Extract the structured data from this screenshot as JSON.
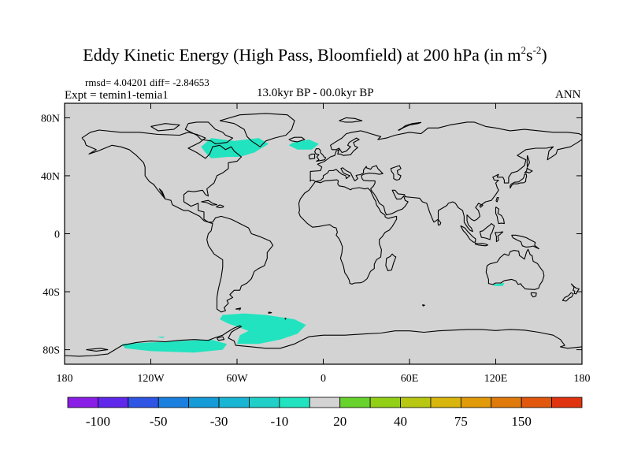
{
  "title": {
    "main": "Eddy Kinetic Energy (High Pass, Bloomfield) at 200 hPa (in m",
    "sup1": "2",
    "mid": "s",
    "sup2": "-2",
    "end": ")"
  },
  "stats": "rmsd= 4.04201 diff= -2.84653",
  "experiment": "Expt = temin1-temia1",
  "period": "13.0kyr BP - 00.0kyr BP",
  "season": "ANN",
  "map": {
    "lon_range": [
      -180,
      180
    ],
    "lat_range": [
      -90,
      90
    ],
    "background_color": "#d3d3d3",
    "x_ticks": [
      {
        "value": -180,
        "label": "180"
      },
      {
        "value": -120,
        "label": "120W"
      },
      {
        "value": -60,
        "label": "60W"
      },
      {
        "value": 0,
        "label": "0"
      },
      {
        "value": 60,
        "label": "60E"
      },
      {
        "value": 120,
        "label": "120E"
      },
      {
        "value": 180,
        "label": "180"
      }
    ],
    "y_ticks": [
      {
        "value": 80,
        "label": "80N"
      },
      {
        "value": 40,
        "label": "40N"
      },
      {
        "value": 0,
        "label": "0"
      },
      {
        "value": -40,
        "label": "40S"
      },
      {
        "value": -80,
        "label": "80S"
      }
    ],
    "anomaly_regions": [
      {
        "color": "#21e3bf",
        "level": -10,
        "polygon": [
          [
            -85,
            60
          ],
          [
            -78,
            66
          ],
          [
            -62,
            64
          ],
          [
            -45,
            66
          ],
          [
            -38,
            62
          ],
          [
            -48,
            56
          ],
          [
            -58,
            53
          ],
          [
            -66,
            53
          ],
          [
            -78,
            52
          ],
          [
            -82,
            56
          ]
        ]
      },
      {
        "color": "#21e3bf",
        "level": -10,
        "polygon": [
          [
            -21,
            63
          ],
          [
            -10,
            65
          ],
          [
            -3,
            62
          ],
          [
            -8,
            58
          ],
          [
            -18,
            58
          ],
          [
            -24,
            61
          ]
        ]
      },
      {
        "color": "#21e3bf",
        "level": -10,
        "polygon": [
          [
            -70,
            -56
          ],
          [
            -55,
            -55
          ],
          [
            -40,
            -56
          ],
          [
            -20,
            -59
          ],
          [
            -12,
            -63
          ],
          [
            -18,
            -69
          ],
          [
            -30,
            -73
          ],
          [
            -45,
            -76
          ],
          [
            -60,
            -76
          ],
          [
            -58,
            -70
          ],
          [
            -52,
            -67
          ],
          [
            -60,
            -64
          ],
          [
            -66,
            -62
          ],
          [
            -72,
            -59
          ]
        ]
      },
      {
        "color": "#21e3bf",
        "level": -10,
        "polygon": [
          [
            -140,
            -76
          ],
          [
            -100,
            -74
          ],
          [
            -78,
            -73
          ],
          [
            -67,
            -76
          ],
          [
            -70,
            -80
          ],
          [
            -90,
            -82
          ],
          [
            -120,
            -81
          ],
          [
            -138,
            -79
          ]
        ]
      },
      {
        "color": "#21e3bf",
        "level": -10,
        "polygon": [
          [
            -116,
            -71
          ],
          [
            -110,
            -71
          ],
          [
            -112,
            -72
          ]
        ]
      },
      {
        "color": "#21e3bf",
        "level": -10,
        "polygon": [
          [
            118,
            -35
          ],
          [
            126,
            -34
          ],
          [
            125,
            -36
          ],
          [
            119,
            -36
          ]
        ]
      }
    ]
  },
  "colorbar": {
    "colors": [
      "#8a1ee6",
      "#5f28ea",
      "#2f55e5",
      "#1a80e0",
      "#149bd8",
      "#18b6d4",
      "#1fcfc8",
      "#21e3bf",
      "#d3d3d3",
      "#68d32d",
      "#92cf17",
      "#b8c812",
      "#d8b60d",
      "#e09a0a",
      "#e07a0a",
      "#e0570d",
      "#e0330f"
    ],
    "labels": [
      {
        "boundary": 1,
        "text": "-100"
      },
      {
        "boundary": 3,
        "text": "-50"
      },
      {
        "boundary": 5,
        "text": "-30"
      },
      {
        "boundary": 7,
        "text": "-10"
      },
      {
        "boundary": 9,
        "text": "20"
      },
      {
        "boundary": 11,
        "text": "40"
      },
      {
        "boundary": 13,
        "text": "75"
      },
      {
        "boundary": 15,
        "text": "150"
      }
    ]
  }
}
